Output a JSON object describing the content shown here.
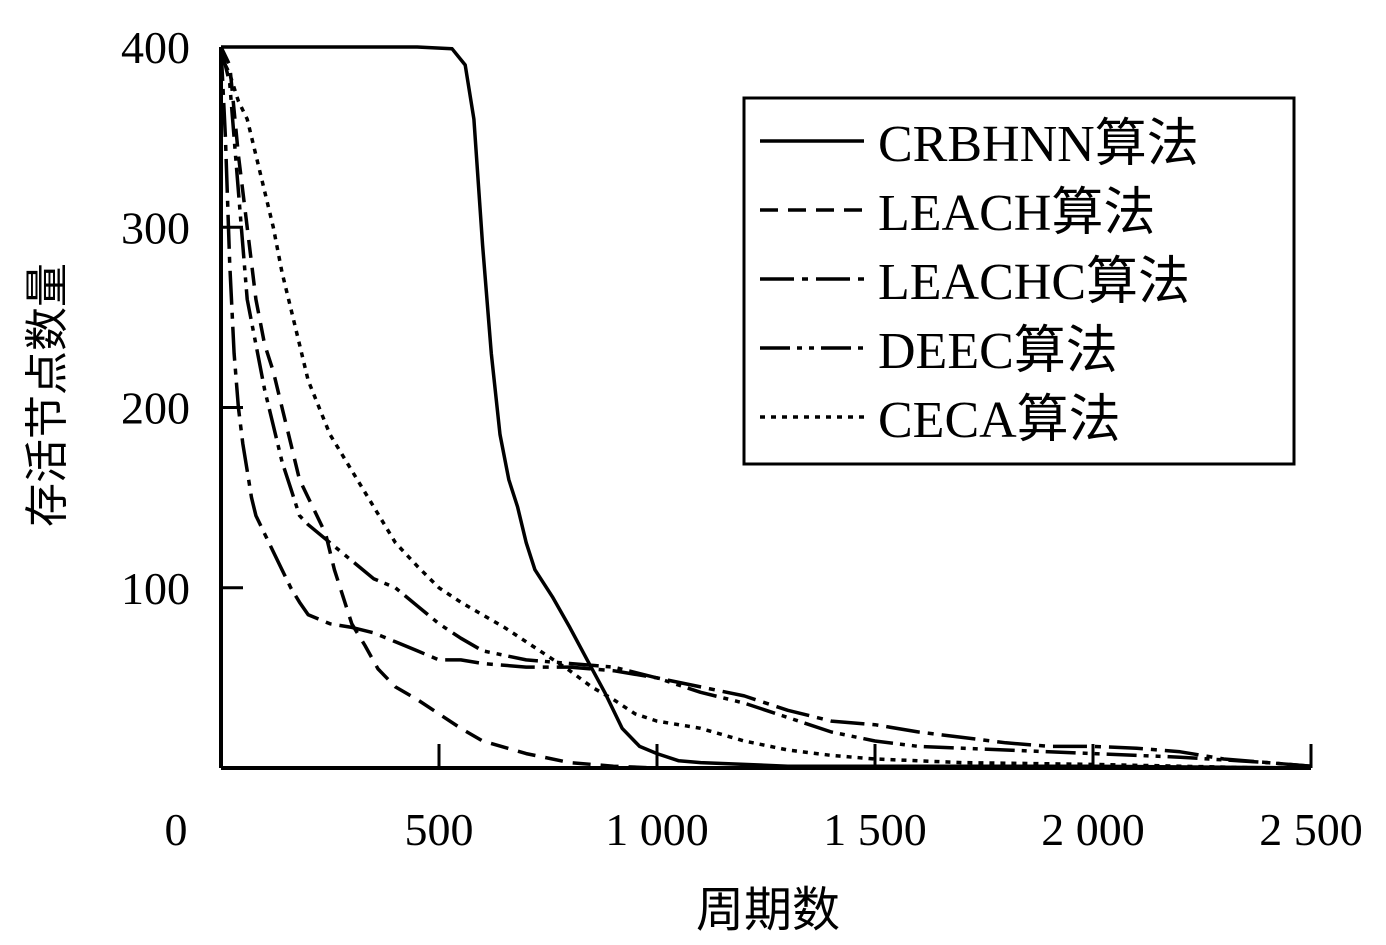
{
  "chart_data": {
    "type": "line",
    "title": "",
    "xlabel": "周期数",
    "ylabel": "存活节点数量",
    "xlim": [
      0,
      2500
    ],
    "ylim": [
      0,
      400
    ],
    "x_ticks": [
      0,
      500,
      1000,
      1500,
      2000,
      2500
    ],
    "x_tick_labels": [
      "0",
      "500",
      "1 000",
      "1 500",
      "2 000",
      "2 500"
    ],
    "y_ticks": [
      100,
      200,
      300,
      400
    ],
    "y_tick_labels": [
      "100",
      "200",
      "300",
      "400"
    ],
    "grid": false,
    "legend_position": "top-right",
    "series": [
      {
        "name": "CRBHNN算法",
        "dash": "solid",
        "x": [
          0,
          450,
          530,
          560,
          580,
          600,
          620,
          640,
          660,
          680,
          700,
          720,
          760,
          800,
          840,
          880,
          920,
          960,
          1000,
          1050,
          1100,
          1200,
          1300,
          1500,
          2000,
          2500
        ],
        "y": [
          400,
          400,
          399,
          390,
          360,
          290,
          230,
          185,
          160,
          145,
          125,
          110,
          95,
          78,
          60,
          42,
          22,
          12,
          8,
          4,
          3,
          2,
          1,
          1,
          1,
          0
        ]
      },
      {
        "name": "LEACH算法",
        "dash": "dashed",
        "x": [
          0,
          20,
          40,
          60,
          80,
          100,
          120,
          140,
          160,
          180,
          200,
          240,
          260,
          280,
          300,
          330,
          360,
          400,
          450,
          500,
          550,
          600,
          700,
          800,
          900,
          1000,
          1200
        ],
        "y": [
          400,
          390,
          340,
          300,
          260,
          235,
          220,
          200,
          180,
          160,
          150,
          130,
          110,
          95,
          80,
          68,
          55,
          45,
          38,
          30,
          22,
          15,
          8,
          3,
          1,
          0,
          0
        ]
      },
      {
        "name": "LEACHC算法",
        "dash": "longdash-dot",
        "x": [
          0,
          10,
          20,
          30,
          40,
          50,
          60,
          70,
          80,
          100,
          120,
          140,
          160,
          180,
          200,
          250,
          300,
          350,
          400,
          450,
          500,
          550,
          600,
          700,
          800,
          900,
          1000,
          1100,
          1200,
          1300,
          1400,
          1500,
          1600,
          1700,
          1800,
          1900,
          2000,
          2100,
          2200,
          2300,
          2400,
          2500
        ],
        "y": [
          400,
          350,
          280,
          230,
          200,
          180,
          165,
          150,
          140,
          130,
          120,
          110,
          100,
          92,
          85,
          80,
          78,
          75,
          70,
          65,
          60,
          60,
          58,
          56,
          56,
          54,
          50,
          45,
          40,
          32,
          26,
          24,
          20,
          17,
          14,
          12,
          12,
          11,
          9,
          5,
          3,
          1
        ]
      },
      {
        "name": "DEEC算法",
        "dash": "longdash-dot-dot",
        "x": [
          0,
          20,
          40,
          60,
          80,
          100,
          120,
          140,
          160,
          180,
          200,
          250,
          300,
          350,
          400,
          450,
          500,
          550,
          600,
          700,
          800,
          900,
          1000,
          1100,
          1200,
          1300,
          1400,
          1500,
          1600,
          1800,
          2000,
          2200,
          2400,
          2500
        ],
        "y": [
          400,
          380,
          320,
          260,
          235,
          210,
          190,
          170,
          155,
          140,
          135,
          125,
          115,
          105,
          100,
          90,
          80,
          72,
          65,
          60,
          58,
          56,
          50,
          42,
          36,
          28,
          20,
          15,
          12,
          10,
          8,
          6,
          3,
          1
        ]
      },
      {
        "name": "CECA算法",
        "dash": "dotted",
        "x": [
          0,
          20,
          40,
          60,
          80,
          100,
          120,
          140,
          160,
          180,
          200,
          250,
          300,
          350,
          400,
          450,
          500,
          550,
          600,
          650,
          700,
          750,
          800,
          850,
          900,
          950,
          1000,
          1100,
          1200,
          1300,
          1400,
          1500,
          1700,
          2000,
          2200,
          2400,
          2500
        ],
        "y": [
          395,
          385,
          370,
          360,
          340,
          320,
          300,
          275,
          255,
          235,
          215,
          185,
          165,
          145,
          125,
          112,
          100,
          92,
          85,
          78,
          70,
          62,
          54,
          45,
          38,
          30,
          26,
          22,
          15,
          10,
          7,
          5,
          3,
          2,
          1,
          0,
          0
        ]
      }
    ]
  }
}
